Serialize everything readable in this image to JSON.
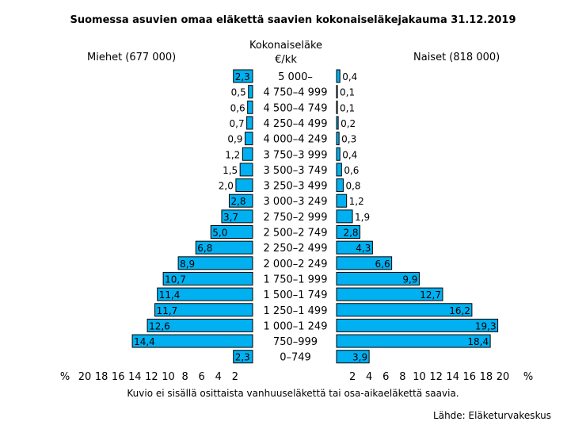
{
  "chart_data": {
    "type": "bar",
    "title": "Suomessa asuvien omaa eläkettä saavien kokonaiseläkejakauma  31.12.2019",
    "center_label_line1": "Kokonaiseläke",
    "center_label_line2": "€/kk",
    "left_label": "Miehet (677 000)",
    "right_label": "Naiset (818 000)",
    "categories": [
      "5 000–",
      "4 750–4 999",
      "4 500–4 749",
      "4 250–4 499",
      "4 000–4 249",
      "3 750–3 999",
      "3 500–3 749",
      "3 250–3 499",
      "3 000–3 249",
      "2 750–2 999",
      "2 500–2 749",
      "2 250–2 499",
      "2 000–2 249",
      "1 750–1 999",
      "1 500–1 749",
      "1 250–1 499",
      "1 000–1 249",
      "750–999",
      "0–749"
    ],
    "series": [
      {
        "name": "Miehet (677 000)",
        "values": [
          2.3,
          0.5,
          0.6,
          0.7,
          0.9,
          1.2,
          1.5,
          2.0,
          2.8,
          3.7,
          5.0,
          6.8,
          8.9,
          10.7,
          11.4,
          11.7,
          12.6,
          14.4,
          2.3
        ],
        "labels": [
          "2,3",
          "0,5",
          "0,6",
          "0,7",
          "0,9",
          "1,2",
          "1,5",
          "2,0",
          "2,8",
          "3,7",
          "5,0",
          "6,8",
          "8,9",
          "10,7",
          "11,4",
          "11,7",
          "12,6",
          "14,4",
          "2,3"
        ]
      },
      {
        "name": "Naiset (818 000)",
        "values": [
          0.4,
          0.1,
          0.1,
          0.2,
          0.3,
          0.4,
          0.6,
          0.8,
          1.2,
          1.9,
          2.8,
          4.3,
          6.6,
          9.9,
          12.7,
          16.2,
          19.3,
          18.4,
          3.9
        ],
        "labels": [
          "0,4",
          "0,1",
          "0,1",
          "0,2",
          "0,3",
          "0,4",
          "0,6",
          "0,8",
          "1,2",
          "1,9",
          "2,8",
          "4,3",
          "6,6",
          "9,9",
          "12,7",
          "16,2",
          "19,3",
          "18,4",
          "3,9"
        ]
      }
    ],
    "x_ticks_left": [
      "20",
      "18",
      "16",
      "14",
      "12",
      "10",
      "8",
      "6",
      "4",
      "2"
    ],
    "x_ticks_right": [
      "2",
      "4",
      "6",
      "8",
      "10",
      "12",
      "14",
      "16",
      "18",
      "20"
    ],
    "x_unit": "%",
    "xlim": [
      0,
      20
    ],
    "bar_color": "#00b0f0",
    "note": "Kuvio ei sisällä osittaista vanhuuseläkettä tai osa-aikaeläkettä saavia.",
    "source": "Lähde: Eläketurvakeskus"
  }
}
